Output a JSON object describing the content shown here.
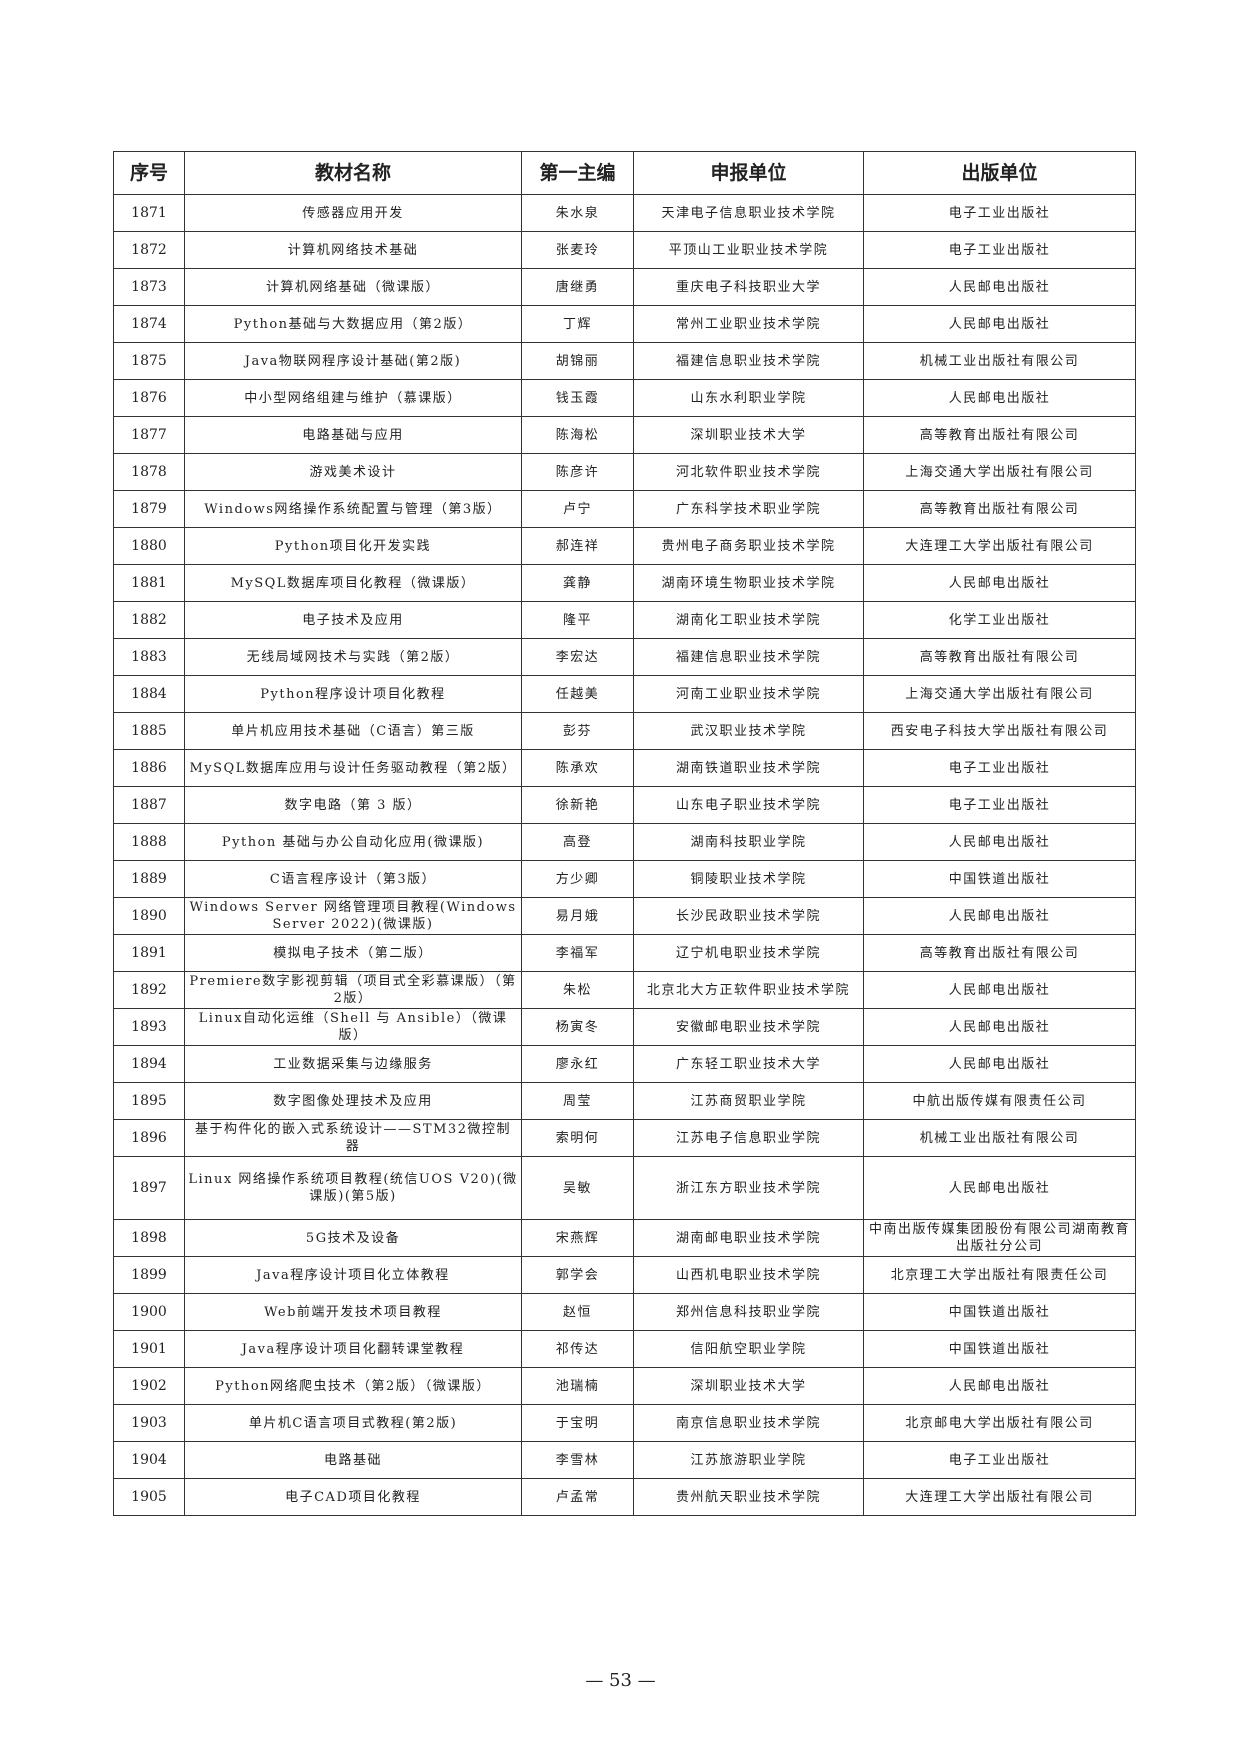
{
  "table": {
    "headers": [
      "序号",
      "教材名称",
      "第一主编",
      "申报单位",
      "出版单位"
    ],
    "rows": [
      [
        "1871",
        "传感器应用开发",
        "朱水泉",
        "天津电子信息职业技术学院",
        "电子工业出版社"
      ],
      [
        "1872",
        "计算机网络技术基础",
        "张麦玲",
        "平顶山工业职业技术学院",
        "电子工业出版社"
      ],
      [
        "1873",
        "计算机网络基础（微课版）",
        "唐继勇",
        "重庆电子科技职业大学",
        "人民邮电出版社"
      ],
      [
        "1874",
        "Python基础与大数据应用（第2版）",
        "丁辉",
        "常州工业职业技术学院",
        "人民邮电出版社"
      ],
      [
        "1875",
        "Java物联网程序设计基础(第2版)",
        "胡锦丽",
        "福建信息职业技术学院",
        "机械工业出版社有限公司"
      ],
      [
        "1876",
        "中小型网络组建与维护（慕课版）",
        "钱玉霞",
        "山东水利职业学院",
        "人民邮电出版社"
      ],
      [
        "1877",
        "电路基础与应用",
        "陈海松",
        "深圳职业技术大学",
        "高等教育出版社有限公司"
      ],
      [
        "1878",
        "游戏美术设计",
        "陈彦许",
        "河北软件职业技术学院",
        "上海交通大学出版社有限公司"
      ],
      [
        "1879",
        "Windows网络操作系统配置与管理（第3版）",
        "卢宁",
        "广东科学技术职业学院",
        "高等教育出版社有限公司"
      ],
      [
        "1880",
        "Python项目化开发实践",
        "郝连祥",
        "贵州电子商务职业技术学院",
        "大连理工大学出版社有限公司"
      ],
      [
        "1881",
        "MySQL数据库项目化教程（微课版）",
        "龚静",
        "湖南环境生物职业技术学院",
        "人民邮电出版社"
      ],
      [
        "1882",
        "电子技术及应用",
        "隆平",
        "湖南化工职业技术学院",
        "化学工业出版社"
      ],
      [
        "1883",
        "无线局域网技术与实践（第2版）",
        "李宏达",
        "福建信息职业技术学院",
        "高等教育出版社有限公司"
      ],
      [
        "1884",
        "Python程序设计项目化教程",
        "任越美",
        "河南工业职业技术学院",
        "上海交通大学出版社有限公司"
      ],
      [
        "1885",
        "单片机应用技术基础（C语言）第三版",
        "彭芬",
        "武汉职业技术学院",
        "西安电子科技大学出版社有限公司"
      ],
      [
        "1886",
        "MySQL数据库应用与设计任务驱动教程（第2版）",
        "陈承欢",
        "湖南铁道职业技术学院",
        "电子工业出版社"
      ],
      [
        "1887",
        "数字电路（第 3 版）",
        "徐新艳",
        "山东电子职业技术学院",
        "电子工业出版社"
      ],
      [
        "1888",
        "Python 基础与办公自动化应用(微课版)",
        "高登",
        "湖南科技职业学院",
        "人民邮电出版社"
      ],
      [
        "1889",
        "C语言程序设计（第3版）",
        "方少卿",
        "铜陵职业技术学院",
        "中国铁道出版社"
      ],
      [
        "1890",
        "Windows Server 网络管理项目教程(Windows Server 2022)(微课版)",
        "易月娥",
        "长沙民政职业技术学院",
        "人民邮电出版社"
      ],
      [
        "1891",
        "模拟电子技术（第二版）",
        "李福军",
        "辽宁机电职业技术学院",
        "高等教育出版社有限公司"
      ],
      [
        "1892",
        "Premiere数字影视剪辑（项目式全彩慕课版）（第2版）",
        "朱松",
        "北京北大方正软件职业技术学院",
        "人民邮电出版社"
      ],
      [
        "1893",
        "Linux自动化运维（Shell 与 Ansible）（微课版）",
        "杨寅冬",
        "安徽邮电职业技术学院",
        "人民邮电出版社"
      ],
      [
        "1894",
        "工业数据采集与边缘服务",
        "廖永红",
        "广东轻工职业技术大学",
        "人民邮电出版社"
      ],
      [
        "1895",
        "数字图像处理技术及应用",
        "周莹",
        "江苏商贸职业学院",
        "中航出版传媒有限责任公司"
      ],
      [
        "1896",
        "基于构件化的嵌入式系统设计——STM32微控制器",
        "索明何",
        "江苏电子信息职业学院",
        "机械工业出版社有限公司"
      ],
      [
        "1897",
        "Linux 网络操作系统项目教程(统信UOS V20)(微课版)(第5版)",
        "吴敏",
        "浙江东方职业技术学院",
        "人民邮电出版社"
      ],
      [
        "1898",
        "5G技术及设备",
        "宋燕辉",
        "湖南邮电职业技术学院",
        "中南出版传媒集团股份有限公司湖南教育出版社分公司"
      ],
      [
        "1899",
        "Java程序设计项目化立体教程",
        "郭学会",
        "山西机电职业技术学院",
        "北京理工大学出版社有限责任公司"
      ],
      [
        "1900",
        "Web前端开发技术项目教程",
        "赵恒",
        "郑州信息科技职业学院",
        "中国铁道出版社"
      ],
      [
        "1901",
        "Java程序设计项目化翻转课堂教程",
        "祁传达",
        "信阳航空职业学院",
        "中国铁道出版社"
      ],
      [
        "1902",
        "Python网络爬虫技术（第2版）（微课版）",
        "池瑞楠",
        "深圳职业技术大学",
        "人民邮电出版社"
      ],
      [
        "1903",
        "单片机C语言项目式教程(第2版)",
        "于宝明",
        "南京信息职业技术学院",
        "北京邮电大学出版社有限公司"
      ],
      [
        "1904",
        "电路基础",
        "李雪林",
        "江苏旅游职业学院",
        "电子工业出版社"
      ],
      [
        "1905",
        "电子CAD项目化教程",
        "卢孟常",
        "贵州航天职业技术学院",
        "大连理工大学出版社有限公司"
      ]
    ]
  },
  "footer": {
    "page_number": "— 53 —"
  }
}
